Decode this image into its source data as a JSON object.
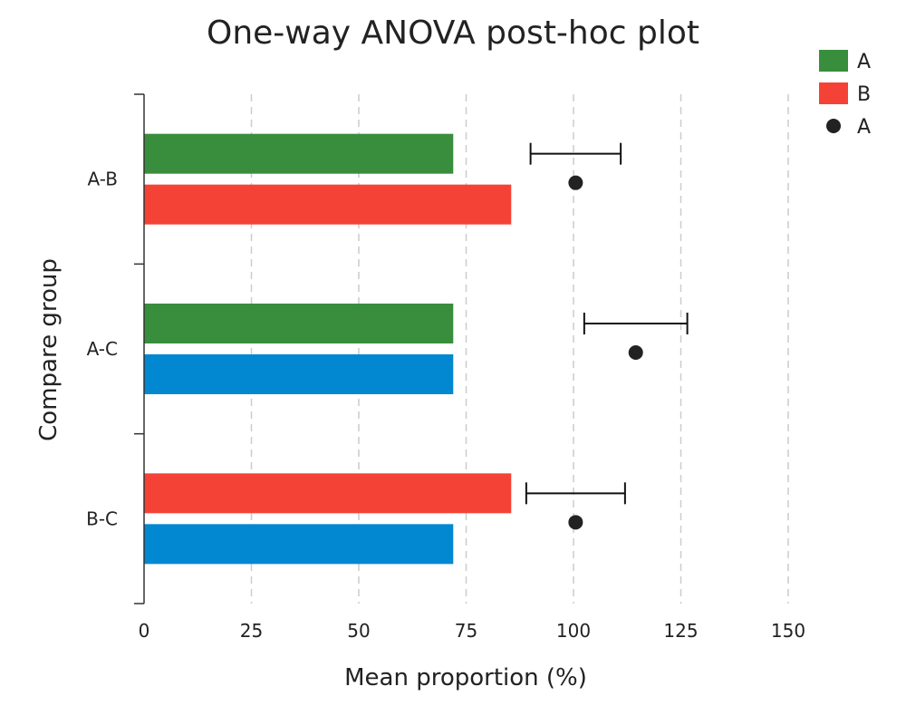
{
  "chart_data": {
    "type": "bar",
    "orientation": "horizontal",
    "title": "One-way ANOVA post-hoc plot",
    "xlabel": "Mean proportion (%)",
    "ylabel": "Compare group",
    "xlim": [
      0,
      150
    ],
    "xticks": [
      0,
      25,
      50,
      75,
      100,
      125,
      150
    ],
    "grid": "vertical-dashed",
    "legend_position": "top-right",
    "legend": [
      {
        "label": "A",
        "kind": "bar",
        "color": "#388e3c"
      },
      {
        "label": "B",
        "kind": "bar",
        "color": "#f44336"
      },
      {
        "label": "A",
        "kind": "point",
        "color": "#222222"
      }
    ],
    "groups": [
      {
        "label": "A-B",
        "bars": [
          {
            "value": 72,
            "color": "#388e3c"
          },
          {
            "value": 85.5,
            "color": "#f44336"
          }
        ],
        "point": {
          "value": 100.5,
          "low": 90,
          "high": 111
        }
      },
      {
        "label": "A-C",
        "bars": [
          {
            "value": 72,
            "color": "#388e3c"
          },
          {
            "value": 72,
            "color": "#0288d1"
          }
        ],
        "point": {
          "value": 114.5,
          "low": 102.5,
          "high": 126.5
        }
      },
      {
        "label": "B-C",
        "bars": [
          {
            "value": 85.5,
            "color": "#f44336"
          },
          {
            "value": 72,
            "color": "#0288d1"
          }
        ],
        "point": {
          "value": 100.5,
          "low": 89,
          "high": 112
        }
      }
    ]
  }
}
